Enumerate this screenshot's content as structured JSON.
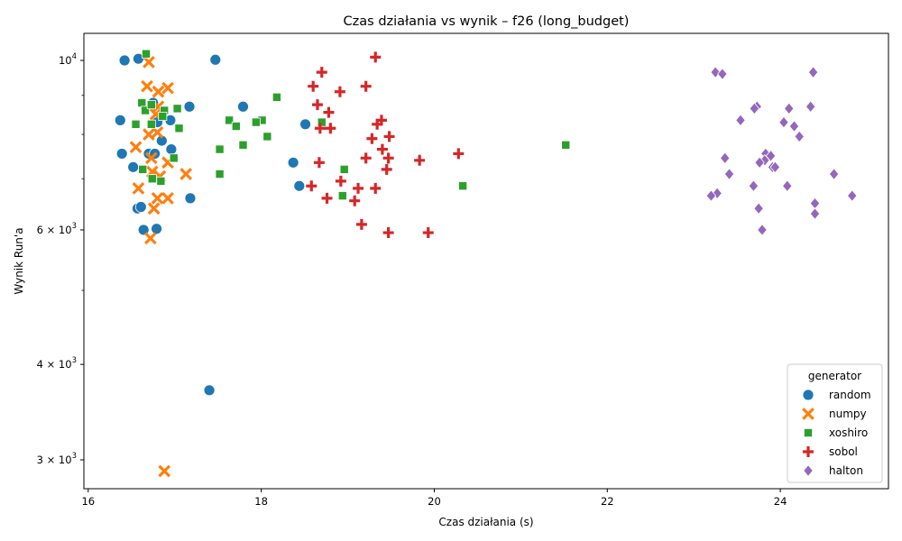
{
  "chart_data": {
    "type": "scatter",
    "title": "Czas działania vs wynik – f26 (long_budget)",
    "xlabel": "Czas działania (s)",
    "ylabel": "Wynik Run'a",
    "xlim": [
      15.95,
      25.25
    ],
    "ylim": [
      2750,
      10850
    ],
    "yscale": "log",
    "x_ticks": [
      {
        "value": 16,
        "label": "16"
      },
      {
        "value": 18,
        "label": "18"
      },
      {
        "value": 20,
        "label": "20"
      },
      {
        "value": 22,
        "label": "22"
      },
      {
        "value": 24,
        "label": "24"
      }
    ],
    "y_ticks": [
      {
        "value": 3000,
        "base": "3 × 10",
        "exp": "3"
      },
      {
        "value": 4000,
        "base": "4 × 10",
        "exp": "3"
      },
      {
        "value": 6000,
        "base": "6 × 10",
        "exp": "3"
      },
      {
        "value": 10000,
        "base": "10",
        "exp": "4"
      }
    ],
    "y_minor_ticks": [
      5000,
      7000,
      8000,
      9000
    ],
    "grid": false,
    "legend": {
      "title": "generator",
      "position": "bottom-right"
    },
    "series": [
      {
        "name": "random",
        "marker": "circle",
        "color": "#1f77b4",
        "points": [
          [
            16.42,
            10000
          ],
          [
            16.58,
            10050
          ],
          [
            17.47,
            10020
          ],
          [
            16.37,
            8350
          ],
          [
            16.95,
            8350
          ],
          [
            17.17,
            8700
          ],
          [
            17.79,
            8700
          ],
          [
            18.51,
            8250
          ],
          [
            16.39,
            7550
          ],
          [
            16.7,
            7550
          ],
          [
            16.77,
            7550
          ],
          [
            16.85,
            7850
          ],
          [
            16.96,
            7650
          ],
          [
            16.52,
            7250
          ],
          [
            18.37,
            7350
          ],
          [
            18.44,
            6850
          ],
          [
            16.57,
            6400
          ],
          [
            16.61,
            6430
          ],
          [
            17.18,
            6600
          ],
          [
            16.64,
            6000
          ],
          [
            16.79,
            6020
          ],
          [
            17.4,
            3700
          ],
          [
            16.75,
            8800
          ],
          [
            16.8,
            8300
          ]
        ]
      },
      {
        "name": "numpy",
        "marker": "x",
        "color": "#ff7f0e",
        "points": [
          [
            16.7,
            9950
          ],
          [
            16.68,
            9250
          ],
          [
            16.81,
            9100
          ],
          [
            16.92,
            9200
          ],
          [
            16.78,
            8500
          ],
          [
            16.81,
            8700
          ],
          [
            16.7,
            8000
          ],
          [
            16.8,
            8050
          ],
          [
            16.55,
            7700
          ],
          [
            16.73,
            7450
          ],
          [
            16.92,
            7350
          ],
          [
            16.74,
            7150
          ],
          [
            16.83,
            7050
          ],
          [
            17.13,
            7100
          ],
          [
            16.58,
            6800
          ],
          [
            16.8,
            6600
          ],
          [
            16.92,
            6600
          ],
          [
            16.76,
            6400
          ],
          [
            16.72,
            5850
          ],
          [
            16.88,
            2900
          ]
        ]
      },
      {
        "name": "xoshiro",
        "marker": "square",
        "color": "#2ca02c",
        "points": [
          [
            16.67,
            10200
          ],
          [
            16.62,
            8800
          ],
          [
            16.66,
            8600
          ],
          [
            16.73,
            8750
          ],
          [
            16.88,
            8600
          ],
          [
            17.03,
            8650
          ],
          [
            16.86,
            8450
          ],
          [
            16.55,
            8250
          ],
          [
            16.73,
            8250
          ],
          [
            17.05,
            8150
          ],
          [
            17.63,
            8350
          ],
          [
            18.01,
            8350
          ],
          [
            17.94,
            8300
          ],
          [
            18.18,
            8950
          ],
          [
            18.7,
            8300
          ],
          [
            17.71,
            8200
          ],
          [
            18.07,
            7950
          ],
          [
            17.52,
            7650
          ],
          [
            17.79,
            7750
          ],
          [
            21.52,
            7750
          ],
          [
            16.99,
            7450
          ],
          [
            16.63,
            7200
          ],
          [
            16.74,
            7000
          ],
          [
            16.84,
            6950
          ],
          [
            17.52,
            7100
          ],
          [
            18.96,
            7200
          ],
          [
            18.94,
            6650
          ],
          [
            20.33,
            6850
          ]
        ]
      },
      {
        "name": "sobol",
        "marker": "plus",
        "color": "#d62728",
        "points": [
          [
            19.32,
            10100
          ],
          [
            18.7,
            9650
          ],
          [
            18.6,
            9250
          ],
          [
            19.21,
            9250
          ],
          [
            18.91,
            9100
          ],
          [
            18.65,
            8750
          ],
          [
            18.78,
            8550
          ],
          [
            19.39,
            8350
          ],
          [
            19.34,
            8250
          ],
          [
            18.68,
            8150
          ],
          [
            18.8,
            8150
          ],
          [
            19.48,
            7950
          ],
          [
            19.28,
            7900
          ],
          [
            19.4,
            7650
          ],
          [
            20.28,
            7550
          ],
          [
            19.21,
            7450
          ],
          [
            19.47,
            7450
          ],
          [
            19.83,
            7400
          ],
          [
            18.67,
            7350
          ],
          [
            19.45,
            7200
          ],
          [
            18.92,
            6950
          ],
          [
            18.58,
            6850
          ],
          [
            19.12,
            6800
          ],
          [
            19.32,
            6800
          ],
          [
            18.76,
            6600
          ],
          [
            19.08,
            6550
          ],
          [
            19.16,
            6100
          ],
          [
            19.47,
            5950
          ],
          [
            19.93,
            5950
          ]
        ]
      },
      {
        "name": "halton",
        "marker": "diamond",
        "color": "#9467bd",
        "points": [
          [
            23.25,
            9650
          ],
          [
            23.33,
            9600
          ],
          [
            24.38,
            9650
          ],
          [
            23.73,
            8700
          ],
          [
            23.7,
            8650
          ],
          [
            24.35,
            8700
          ],
          [
            24.1,
            8650
          ],
          [
            24.04,
            8300
          ],
          [
            23.54,
            8350
          ],
          [
            24.16,
            8200
          ],
          [
            24.22,
            7950
          ],
          [
            23.83,
            7550
          ],
          [
            23.89,
            7500
          ],
          [
            23.82,
            7400
          ],
          [
            23.36,
            7450
          ],
          [
            23.76,
            7350
          ],
          [
            23.91,
            7250
          ],
          [
            23.94,
            7250
          ],
          [
            23.41,
            7100
          ],
          [
            24.62,
            7100
          ],
          [
            23.69,
            6850
          ],
          [
            24.08,
            6850
          ],
          [
            23.27,
            6700
          ],
          [
            23.2,
            6650
          ],
          [
            24.83,
            6650
          ],
          [
            24.4,
            6500
          ],
          [
            23.75,
            6400
          ],
          [
            24.4,
            6300
          ],
          [
            23.79,
            6000
          ]
        ]
      }
    ]
  }
}
